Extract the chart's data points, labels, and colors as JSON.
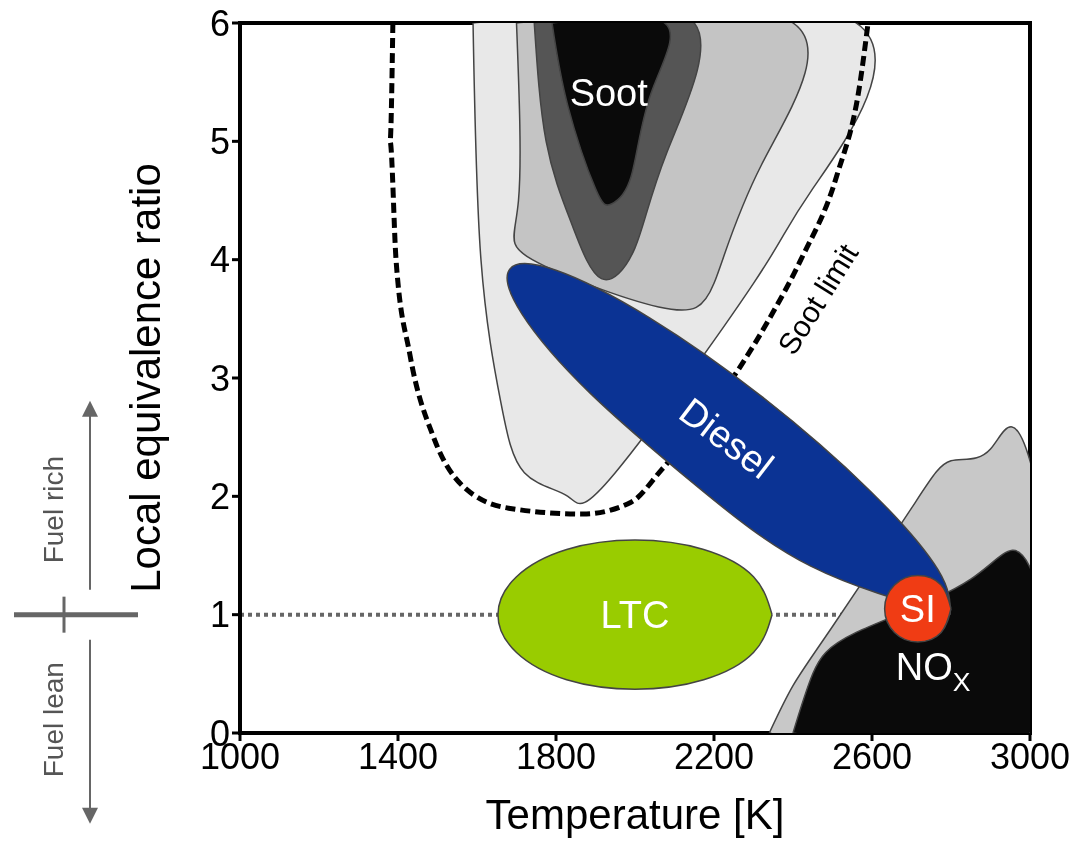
{
  "chart_data": {
    "type": "area",
    "xlabel": "Temperature [K]",
    "ylabel": "Local equivalence ratio",
    "xlim": [
      1000,
      3000
    ],
    "xticks": [
      1000,
      1400,
      1800,
      2200,
      2600,
      3000
    ],
    "ylim": [
      0,
      6
    ],
    "yticks": [
      0,
      1,
      2,
      3,
      4,
      5,
      6
    ],
    "series": [
      {
        "color": "#e8e8e8",
        "x": [
          1590,
          1610,
          1660,
          1720,
          1830,
          1950,
          2300,
          2450,
          2560,
          1590
        ],
        "values": [
          6,
          4,
          2.8,
          2.2,
          2.0,
          2.2,
          3.8,
          4.6,
          6,
          6
        ]
      },
      {
        "color": "#c4c4c4",
        "x": [
          1700,
          1705,
          1740,
          2060,
          2200,
          2320,
          2400,
          1700
        ],
        "values": [
          6,
          4.5,
          4.0,
          3.6,
          3.8,
          4.8,
          6,
          6
        ]
      },
      {
        "color": "#555555",
        "x": [
          1745,
          1775,
          1840,
          1915,
          2000,
          2080,
          2150,
          1745
        ],
        "values": [
          6,
          5,
          4.3,
          3.84,
          4.1,
          4.9,
          6,
          6
        ]
      },
      {
        "name": "Soot",
        "color": "#0a0a0a",
        "x": [
          1790,
          1830,
          1900,
          1940,
          1990,
          2040,
          2075,
          1790
        ],
        "values": [
          6,
          5.3,
          4.6,
          4.47,
          4.7,
          5.4,
          6,
          6
        ]
      },
      {
        "color": "#c8c8c8",
        "x": [
          2340,
          2400,
          2500,
          2700,
          2800,
          2900,
          3000,
          3000,
          2340
        ],
        "values": [
          0,
          0.4,
          0.9,
          1.9,
          2.3,
          2.4,
          2.3,
          0,
          0
        ]
      },
      {
        "name": "NO$_{X}$",
        "color": "#0a0a0a",
        "x": [
          2400,
          2450,
          2560,
          2850,
          3000,
          3000,
          2400
        ],
        "values": [
          0,
          0.5,
          0.85,
          1.3,
          1.4,
          0,
          0
        ]
      },
      {
        "type": "line",
        "name": "Soot limit",
        "line_style": "dashed",
        "color": "#000000",
        "x": [
          1387,
          1380,
          1395,
          1430,
          1490,
          1560,
          1680,
          1868,
          1990,
          2066,
          2340,
          2420,
          2510,
          2570,
          2590
        ],
        "values": [
          6,
          5,
          4,
          3.2,
          2.5,
          2.1,
          1.9,
          1.85,
          1.95,
          2.22,
          3.5,
          4.0,
          4.7,
          5.5,
          6
        ]
      },
      {
        "name": "LTC",
        "color": "#99cc00",
        "x": [
          2347,
          2300,
          2174,
          2000,
          1827,
          1700,
          1653,
          1700,
          1827,
          2000,
          2174,
          2300,
          2347
        ],
        "values": [
          1.0,
          1.32,
          1.55,
          1.63,
          1.55,
          1.32,
          1.0,
          0.68,
          0.45,
          0.37,
          0.45,
          0.68,
          1.0
        ]
      },
      {
        "name": "Diesel",
        "color": "#0b3394",
        "x": [
          2798,
          2445,
          2155,
          1887,
          1714,
          1683,
          1800,
          2036,
          2326,
          2594,
          2767,
          2798
        ],
        "values": [
          1.0,
          1.41,
          2.09,
          2.87,
          3.54,
          3.92,
          3.91,
          3.51,
          2.83,
          2.05,
          1.38,
          1.0
        ]
      },
      {
        "name": "SI",
        "color": "#f03c14",
        "x": [
          2800,
          2775,
          2716,
          2657,
          2632,
          2657,
          2716,
          2775,
          2800
        ],
        "values": [
          1.05,
          1.25,
          1.33,
          1.25,
          1.05,
          0.85,
          0.77,
          0.85,
          1.05
        ]
      }
    ],
    "ref_lines": [
      {
        "axis": "y",
        "value": 1,
        "color": "#666666",
        "line_style": "dotted"
      }
    ],
    "annotations": [
      "Fuel rich",
      "Fuel lean"
    ]
  }
}
